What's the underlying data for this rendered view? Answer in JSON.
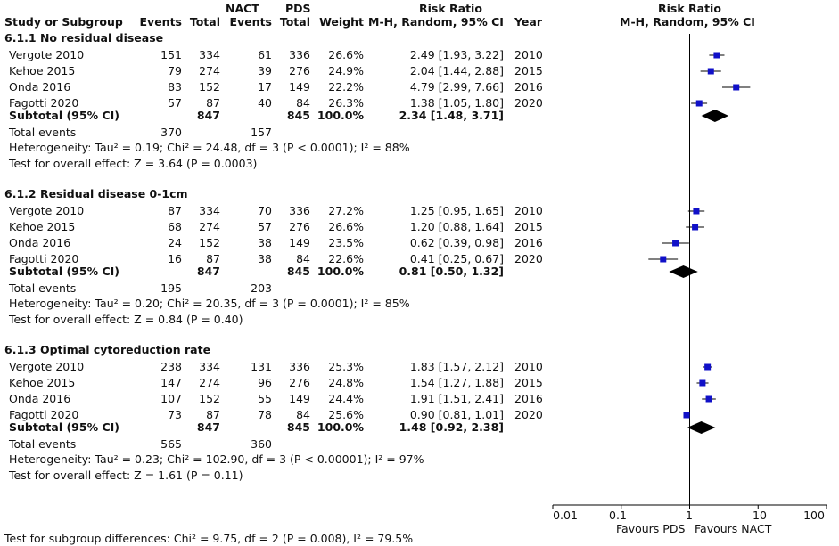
{
  "header": {
    "group1": "NACT",
    "group2": "PDS",
    "study_col": "Study or Subgroup",
    "events": "Events",
    "total": "Total",
    "weight": "Weight",
    "rr_title": "Risk Ratio",
    "rr_method": "M-H, Random, 95% CI",
    "year": "Year",
    "plot_title": "Risk Ratio",
    "plot_method": "M-H, Random, 95% CI"
  },
  "axis": {
    "ticks": [
      "0.01",
      "0.1",
      "1",
      "10",
      "100"
    ],
    "favours_left": "Favours PDS",
    "favours_right": "Favours NACT"
  },
  "footer": {
    "subgroup_diff": "Test for subgroup differences: Chi² = 9.75, df = 2 (P = 0.008), I² = 79.5%"
  },
  "chart_data": {
    "type": "forest",
    "scale": "log",
    "xlim": [
      0.01,
      100
    ],
    "null_line": 1,
    "colors": {
      "study": "#1010c8",
      "diamond": "#000000"
    },
    "groups": [
      {
        "title": "6.1.1 No residual disease",
        "studies": [
          {
            "name": "Vergote 2010",
            "e1": "151",
            "n1": "334",
            "e2": "61",
            "n2": "336",
            "weight": "26.6%",
            "ci_text": "2.49 [1.93, 3.22]",
            "year": "2010",
            "rr": 2.49,
            "lo": 1.93,
            "hi": 3.22
          },
          {
            "name": "Kehoe 2015",
            "e1": "79",
            "n1": "274",
            "e2": "39",
            "n2": "276",
            "weight": "24.9%",
            "ci_text": "2.04 [1.44, 2.88]",
            "year": "2015",
            "rr": 2.04,
            "lo": 1.44,
            "hi": 2.88
          },
          {
            "name": "Onda 2016",
            "e1": "83",
            "n1": "152",
            "e2": "17",
            "n2": "149",
            "weight": "22.2%",
            "ci_text": "4.79 [2.99, 7.66]",
            "year": "2016",
            "rr": 4.79,
            "lo": 2.99,
            "hi": 7.66
          },
          {
            "name": "Fagotti 2020",
            "e1": "57",
            "n1": "87",
            "e2": "40",
            "n2": "84",
            "weight": "26.3%",
            "ci_text": "1.38 [1.05, 1.80]",
            "year": "2020",
            "rr": 1.38,
            "lo": 1.05,
            "hi": 1.8
          }
        ],
        "subtotal": {
          "label": "Subtotal (95% CI)",
          "n1": "847",
          "n2": "845",
          "weight": "100.0%",
          "ci_text": "2.34 [1.48, 3.71]",
          "rr": 2.34,
          "lo": 1.48,
          "hi": 3.71
        },
        "total_events": {
          "label": "Total events",
          "e1": "370",
          "e2": "157"
        },
        "heterogeneity": "Heterogeneity: Tau² = 0.19; Chi² = 24.48, df = 3 (P < 0.0001); I² = 88%",
        "overall": "Test for overall effect: Z = 3.64 (P = 0.0003)"
      },
      {
        "title": "6.1.2 Residual disease 0-1cm",
        "studies": [
          {
            "name": "Vergote 2010",
            "e1": "87",
            "n1": "334",
            "e2": "70",
            "n2": "336",
            "weight": "27.2%",
            "ci_text": "1.25 [0.95, 1.65]",
            "year": "2010",
            "rr": 1.25,
            "lo": 0.95,
            "hi": 1.65
          },
          {
            "name": "Kehoe 2015",
            "e1": "68",
            "n1": "274",
            "e2": "57",
            "n2": "276",
            "weight": "26.6%",
            "ci_text": "1.20 [0.88, 1.64]",
            "year": "2015",
            "rr": 1.2,
            "lo": 0.88,
            "hi": 1.64
          },
          {
            "name": "Onda 2016",
            "e1": "24",
            "n1": "152",
            "e2": "38",
            "n2": "149",
            "weight": "23.5%",
            "ci_text": "0.62 [0.39, 0.98]",
            "year": "2016",
            "rr": 0.62,
            "lo": 0.39,
            "hi": 0.98
          },
          {
            "name": "Fagotti 2020",
            "e1": "16",
            "n1": "87",
            "e2": "38",
            "n2": "84",
            "weight": "22.6%",
            "ci_text": "0.41 [0.25, 0.67]",
            "year": "2020",
            "rr": 0.41,
            "lo": 0.25,
            "hi": 0.67
          }
        ],
        "subtotal": {
          "label": "Subtotal (95% CI)",
          "n1": "847",
          "n2": "845",
          "weight": "100.0%",
          "ci_text": "0.81 [0.50, 1.32]",
          "rr": 0.81,
          "lo": 0.5,
          "hi": 1.32
        },
        "total_events": {
          "label": "Total events",
          "e1": "195",
          "e2": "203"
        },
        "heterogeneity": "Heterogeneity: Tau² = 0.20; Chi² = 20.35, df = 3 (P = 0.0001); I² = 85%",
        "overall": "Test for overall effect: Z = 0.84 (P = 0.40)"
      },
      {
        "title": "6.1.3 Optimal cytoreduction rate",
        "studies": [
          {
            "name": "Vergote 2010",
            "e1": "238",
            "n1": "334",
            "e2": "131",
            "n2": "336",
            "weight": "25.3%",
            "ci_text": "1.83 [1.57, 2.12]",
            "year": "2010",
            "rr": 1.83,
            "lo": 1.57,
            "hi": 2.12
          },
          {
            "name": "Kehoe 2015",
            "e1": "147",
            "n1": "274",
            "e2": "96",
            "n2": "276",
            "weight": "24.8%",
            "ci_text": "1.54 [1.27, 1.88]",
            "year": "2015",
            "rr": 1.54,
            "lo": 1.27,
            "hi": 1.88
          },
          {
            "name": "Onda 2016",
            "e1": "107",
            "n1": "152",
            "e2": "55",
            "n2": "149",
            "weight": "24.4%",
            "ci_text": "1.91 [1.51, 2.41]",
            "year": "2016",
            "rr": 1.91,
            "lo": 1.51,
            "hi": 2.41
          },
          {
            "name": "Fagotti 2020",
            "e1": "73",
            "n1": "87",
            "e2": "78",
            "n2": "84",
            "weight": "25.6%",
            "ci_text": "0.90 [0.81, 1.01]",
            "year": "2020",
            "rr": 0.9,
            "lo": 0.81,
            "hi": 1.01
          }
        ],
        "subtotal": {
          "label": "Subtotal (95% CI)",
          "n1": "847",
          "n2": "845",
          "weight": "100.0%",
          "ci_text": "1.48 [0.92, 2.38]",
          "rr": 1.48,
          "lo": 0.92,
          "hi": 2.38
        },
        "total_events": {
          "label": "Total events",
          "e1": "565",
          "e2": "360"
        },
        "heterogeneity": "Heterogeneity: Tau² = 0.23; Chi² = 102.90, df = 3 (P < 0.00001); I² = 97%",
        "overall": "Test for overall effect: Z = 1.61 (P = 0.11)"
      }
    ]
  }
}
